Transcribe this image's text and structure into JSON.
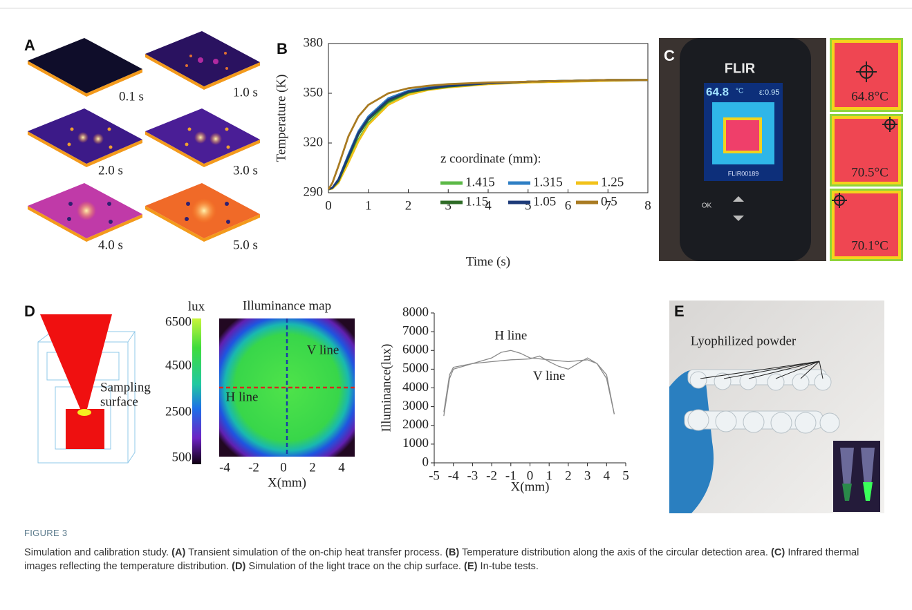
{
  "panel_a": {
    "label": "A",
    "times": [
      "0.1 s",
      "1.0 s",
      "2.0 s",
      "3.0 s",
      "4.0 s",
      "5.0 s"
    ]
  },
  "panel_c": {
    "label": "C",
    "brand": "FLIR",
    "reading": "64.8",
    "unit": "°C",
    "emissivity": "ε:0.95",
    "file": "FLIR00189",
    "button": "OK",
    "thumbnails": [
      "64.8°C",
      "70.5°C",
      "70.1°C"
    ]
  },
  "panel_d": {
    "label": "D",
    "callout": [
      "Sampling",
      "surface"
    ],
    "colorbar_label": "lux",
    "colorbar_ticks": [
      6500,
      4500,
      2500,
      500
    ],
    "map_title": "Illuminance map",
    "map_xticks": [
      -4,
      -2,
      0,
      2,
      4
    ],
    "map_xlabel": "X(mm)",
    "map_lines": [
      "V line",
      "H line"
    ]
  },
  "panel_e": {
    "label": "E",
    "annotation": "Lyophilized powder"
  },
  "chart_data": [
    {
      "type": "line",
      "label": "B",
      "ylabel": "Temperature (K)",
      "xlabel": "Time (s)",
      "legend_title": "z coordinate (mm):",
      "x": [
        0,
        0.1,
        0.25,
        0.5,
        0.75,
        1,
        1.5,
        2,
        2.5,
        3,
        4,
        5,
        6,
        7,
        8
      ],
      "xlim": [
        0,
        8
      ],
      "xticks": [
        0,
        1,
        2,
        3,
        4,
        5,
        6,
        7,
        8
      ],
      "ylim": [
        290,
        380
      ],
      "yticks": [
        290,
        320,
        350,
        380
      ],
      "series": [
        {
          "name": "1.415",
          "color": "#5cb947",
          "values": [
            292,
            292.5,
            296,
            309,
            322,
            332,
            344,
            350,
            352.5,
            354,
            356,
            357,
            357.5,
            358,
            358
          ]
        },
        {
          "name": "1.315",
          "color": "#2f7fc4",
          "values": [
            292,
            293,
            298,
            313,
            327,
            336,
            347,
            351.5,
            353.5,
            355,
            356,
            357,
            357.5,
            358,
            358
          ]
        },
        {
          "name": "1.25",
          "color": "#f2c21a",
          "values": [
            292,
            292.5,
            296,
            308,
            321,
            331,
            343,
            349,
            352,
            353.5,
            355.5,
            356.5,
            357,
            357.5,
            358
          ]
        },
        {
          "name": "1.15",
          "color": "#2e6b26",
          "values": [
            292,
            293,
            297,
            311,
            325,
            334,
            345,
            350.5,
            352.5,
            354,
            356,
            357,
            357.5,
            358,
            358
          ]
        },
        {
          "name": "1.05",
          "color": "#1c3a78",
          "values": [
            292,
            293,
            298,
            312,
            326,
            335,
            346,
            351,
            353,
            354.5,
            356,
            357,
            357.5,
            358,
            358
          ]
        },
        {
          "name": "0.5",
          "color": "#a97b22",
          "values": [
            292,
            296,
            306,
            324,
            336,
            343,
            350,
            353,
            354.5,
            355.5,
            356.5,
            357,
            357.5,
            358,
            358
          ]
        }
      ]
    },
    {
      "type": "line",
      "ylabel": "Illuminance(lux)",
      "xlabel": "X(mm)",
      "x": [
        -4.5,
        -4.2,
        -4,
        -3,
        -2,
        -1.5,
        -1,
        -0.5,
        0,
        0.5,
        1,
        1.5,
        2,
        2.5,
        3,
        3.5,
        4,
        4.4
      ],
      "xlim": [
        -5,
        5
      ],
      "xticks": [
        -5,
        -4,
        -3,
        -2,
        -1,
        0,
        1,
        2,
        3,
        4,
        5
      ],
      "ylim": [
        0,
        8000
      ],
      "yticks": [
        0,
        1000,
        2000,
        3000,
        4000,
        5000,
        6000,
        7000,
        8000
      ],
      "series": [
        {
          "name": "H line",
          "color": "#8a8a8a",
          "values": [
            2500,
            4500,
            5000,
            5300,
            5600,
            5900,
            6000,
            5850,
            5600,
            5550,
            5500,
            5450,
            5400,
            5450,
            5500,
            5300,
            4500,
            2600
          ]
        },
        {
          "name": "V line",
          "color": "#8a8a8a",
          "values": [
            2700,
            4700,
            5100,
            5300,
            5400,
            5450,
            5500,
            5520,
            5550,
            5700,
            5400,
            5150,
            5000,
            5300,
            5600,
            5300,
            4700,
            2600
          ]
        }
      ]
    }
  ],
  "caption": {
    "figure_label": "FIGURE 3",
    "intro": "Simulation and calibration study.",
    "parts": [
      {
        "label": "(A)",
        "text": "Transient simulation of the on-chip heat transfer process."
      },
      {
        "label": "(B)",
        "text": "Temperature distribution along the axis of the circular detection area."
      },
      {
        "label": "(C)",
        "text": "Infrared thermal images reflecting the temperature distribution."
      },
      {
        "label": "(D)",
        "text": "Simulation of the light trace on the chip surface."
      },
      {
        "label": "(E)",
        "text": "In-tube tests."
      }
    ]
  }
}
